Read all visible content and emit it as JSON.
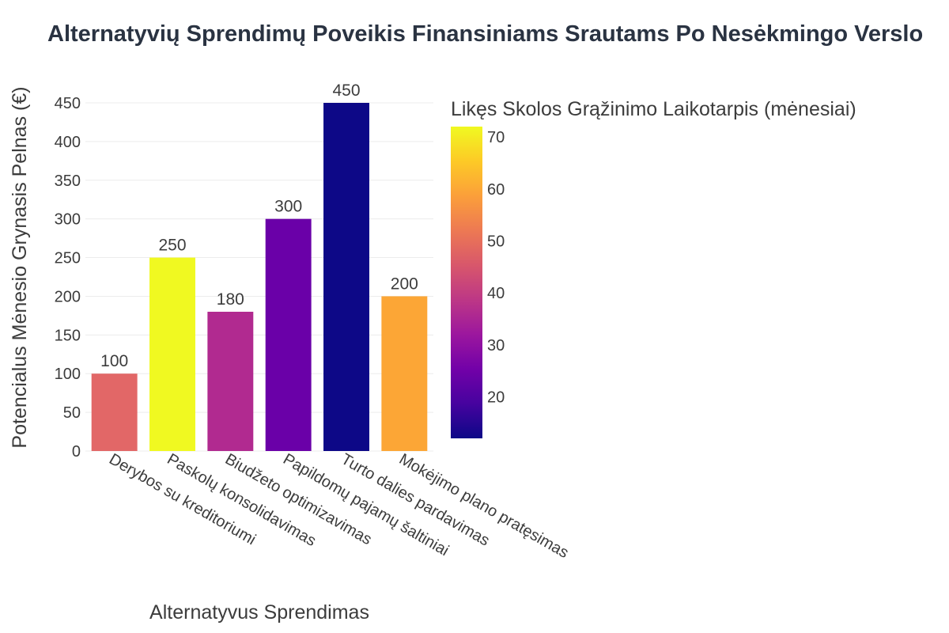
{
  "chart_data": {
    "type": "bar",
    "title": "Alternatyvių Sprendimų Poveikis Finansiniams Srautams Po Nesėkmingo Verslo",
    "xlabel": "Alternatyvus Sprendimas",
    "ylabel": "Potencialus Mėnesio Grynasis Pelnas (€)",
    "categories": [
      "Derybos su kreditoriumi",
      "Paskolų konsolidavimas",
      "Biudžeto optimizavimas",
      "Papildomų pajamų šaltiniai",
      "Turto dalies pardavimas",
      "Mokėjimo plano pratęsimas"
    ],
    "values": [
      100,
      250,
      180,
      300,
      450,
      200
    ],
    "data_labels": [
      "100",
      "250",
      "180",
      "300",
      "450",
      "200"
    ],
    "color_values": [
      48,
      72,
      36,
      24,
      12,
      60
    ],
    "bar_colors": [
      "#e26767",
      "#f0f921",
      "#b12a90",
      "#6a00a8",
      "#0d0887",
      "#fca636"
    ],
    "ylim": [
      0,
      450
    ],
    "yticks": [
      0,
      50,
      100,
      150,
      200,
      250,
      300,
      350,
      400,
      450
    ],
    "grid": true,
    "colorbar": {
      "title": "Likęs Skolos Grąžinimo Laikotarpis (mėnesiai)",
      "range": [
        12,
        72
      ],
      "ticks": [
        20,
        30,
        40,
        50,
        60,
        70
      ],
      "colorscale": [
        "#0d0887",
        "#46039f",
        "#7201a8",
        "#9c179e",
        "#bd3786",
        "#d8576b",
        "#ed7953",
        "#fb9f3a",
        "#fdca26",
        "#f0f921"
      ]
    }
  }
}
